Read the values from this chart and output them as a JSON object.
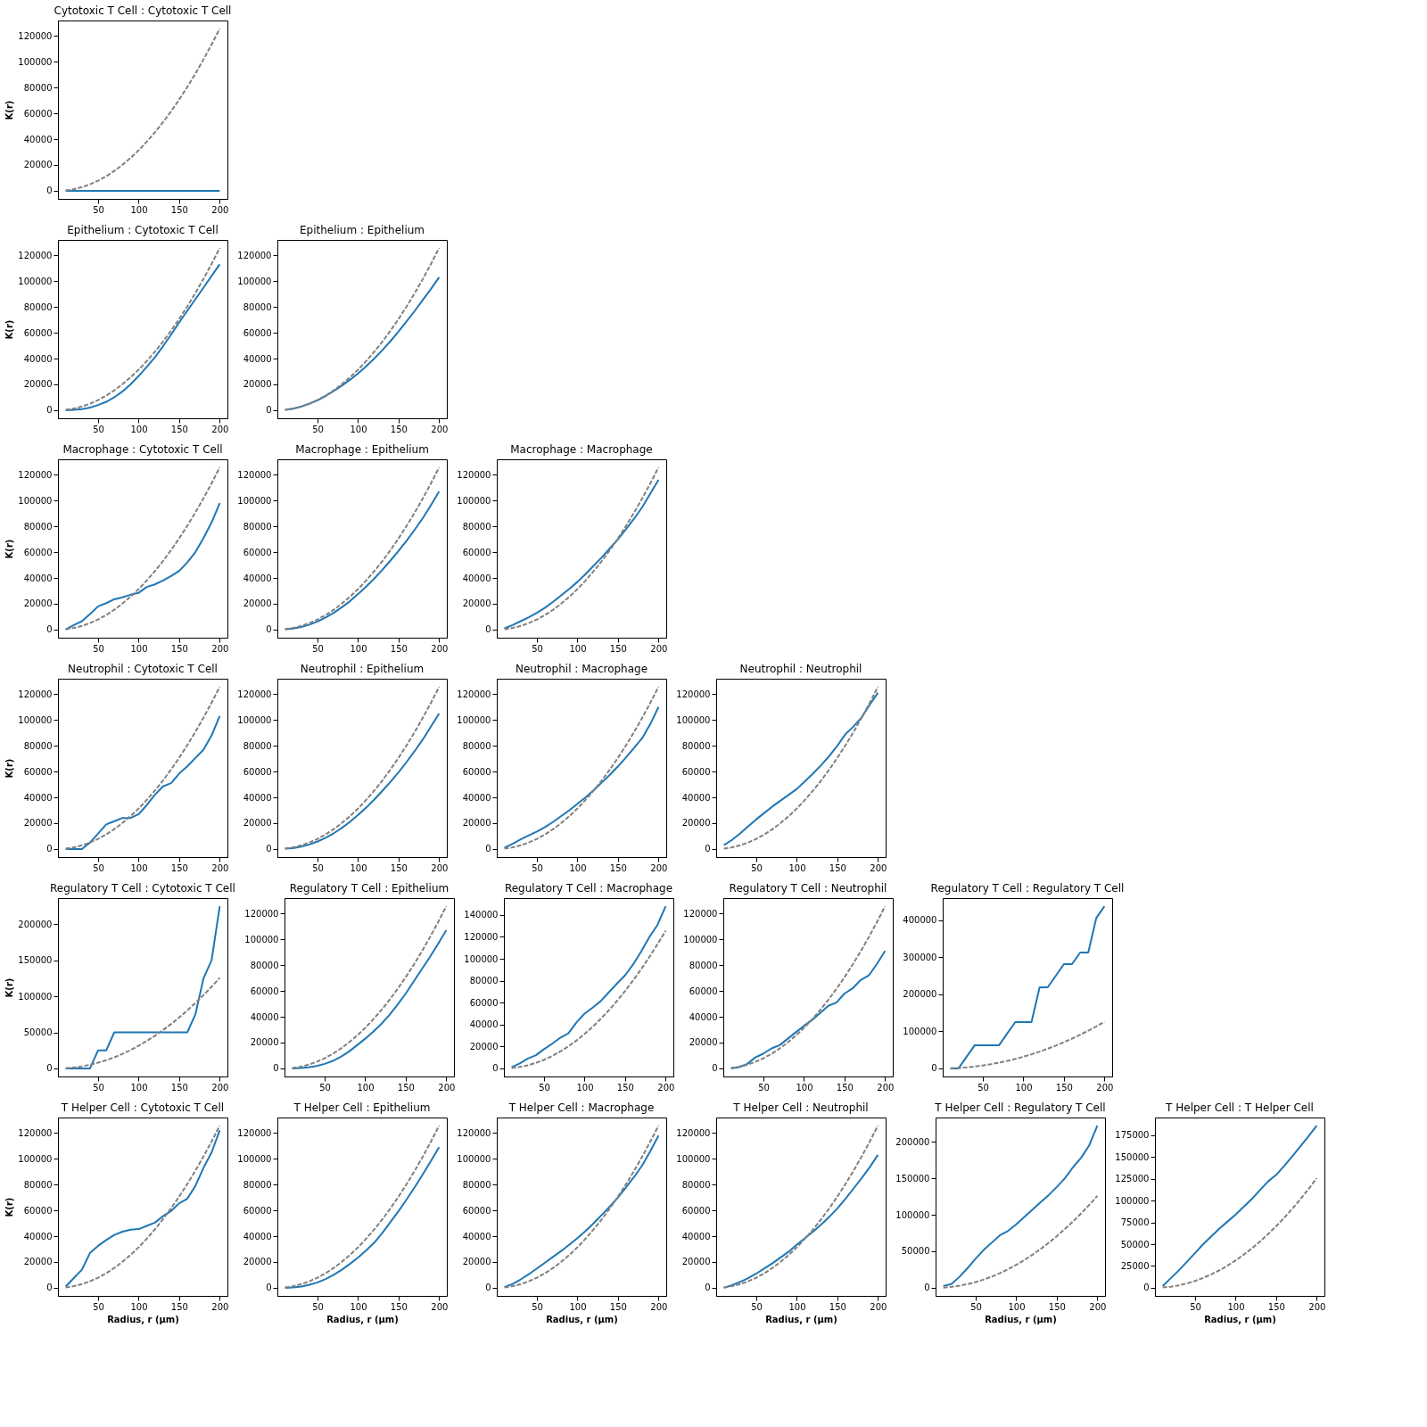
{
  "chart_data": [
    {
      "type": "line",
      "title": "Cytotoxic T Cell : Cytotoxic T Cell",
      "ylabel": "K(r)",
      "x": [
        10,
        20,
        30,
        40,
        50,
        60,
        70,
        80,
        90,
        100,
        110,
        120,
        130,
        140,
        150,
        160,
        170,
        180,
        190,
        200
      ],
      "xlim": [
        0.5,
        209.5
      ],
      "xticks": [
        50,
        100,
        150,
        200
      ],
      "ylim": [
        -6283,
        131947
      ],
      "yticks": [
        0,
        20000,
        40000,
        60000,
        80000,
        100000,
        120000
      ],
      "grid": false,
      "series": [
        {
          "color": "#1f77b4",
          "line_style": "solid",
          "values": [
            0,
            0,
            0,
            0,
            0,
            0,
            0,
            0,
            0,
            0,
            0,
            0,
            0,
            0,
            0,
            0,
            0,
            0,
            0,
            0
          ]
        },
        {
          "color": "#808080",
          "line_style": "dashed",
          "values": [
            314,
            1257,
            2827,
            5027,
            7854,
            11310,
            15394,
            20106,
            25447,
            31416,
            38013,
            45239,
            53093,
            61575,
            70686,
            80425,
            90792,
            101788,
            113411,
            125664
          ]
        }
      ]
    },
    {
      "type": "line",
      "title": "Epithelium : Cytotoxic T Cell",
      "ylabel": "K(r)",
      "x": [
        10,
        20,
        30,
        40,
        50,
        60,
        70,
        80,
        90,
        100,
        110,
        120,
        130,
        140,
        150,
        160,
        170,
        180,
        190,
        200
      ],
      "xlim": [
        0.5,
        209.5
      ],
      "xticks": [
        50,
        100,
        150,
        200
      ],
      "ylim": [
        -6283,
        131947
      ],
      "yticks": [
        0,
        20000,
        40000,
        60000,
        80000,
        100000,
        120000
      ],
      "grid": false,
      "series": [
        {
          "color": "#1f77b4",
          "line_style": "solid",
          "values": [
            0,
            300,
            800,
            2000,
            4000,
            6500,
            10000,
            14500,
            20000,
            26500,
            33500,
            41000,
            49500,
            58500,
            68000,
            77000,
            86000,
            95000,
            104000,
            113000
          ]
        },
        {
          "color": "#808080",
          "line_style": "dashed",
          "values": [
            314,
            1257,
            2827,
            5027,
            7854,
            11310,
            15394,
            20106,
            25447,
            31416,
            38013,
            45239,
            53093,
            61575,
            70686,
            80425,
            90792,
            101788,
            113411,
            125664
          ]
        }
      ]
    },
    {
      "type": "line",
      "title": "Epithelium : Epithelium",
      "x": [
        10,
        20,
        30,
        40,
        50,
        60,
        70,
        80,
        90,
        100,
        110,
        120,
        130,
        140,
        150,
        160,
        170,
        180,
        190,
        200
      ],
      "xlim": [
        0.5,
        209.5
      ],
      "xticks": [
        50,
        100,
        150,
        200
      ],
      "ylim": [
        -6283,
        131947
      ],
      "yticks": [
        0,
        20000,
        40000,
        60000,
        80000,
        100000,
        120000
      ],
      "grid": false,
      "series": [
        {
          "color": "#1f77b4",
          "line_style": "solid",
          "values": [
            300,
            1200,
            2800,
            5000,
            7700,
            11000,
            14800,
            19000,
            23500,
            28500,
            34000,
            40000,
            46500,
            53500,
            61000,
            69000,
            77000,
            85500,
            94000,
            103000
          ]
        },
        {
          "color": "#808080",
          "line_style": "dashed",
          "values": [
            314,
            1257,
            2827,
            5027,
            7854,
            11310,
            15394,
            20106,
            25447,
            31416,
            38013,
            45239,
            53093,
            61575,
            70686,
            80425,
            90792,
            101788,
            113411,
            125664
          ]
        }
      ]
    },
    {
      "type": "line",
      "title": "Macrophage : Cytotoxic T Cell",
      "ylabel": "K(r)",
      "x": [
        10,
        20,
        30,
        40,
        50,
        60,
        70,
        80,
        90,
        100,
        110,
        120,
        130,
        140,
        150,
        160,
        170,
        180,
        190,
        200
      ],
      "xlim": [
        0.5,
        209.5
      ],
      "xticks": [
        50,
        100,
        150,
        200
      ],
      "ylim": [
        -6283,
        131947
      ],
      "yticks": [
        0,
        20000,
        40000,
        60000,
        80000,
        100000,
        120000
      ],
      "grid": false,
      "series": [
        {
          "color": "#1f77b4",
          "line_style": "solid",
          "values": [
            0,
            3500,
            6500,
            12000,
            18000,
            20500,
            23500,
            25000,
            27000,
            28500,
            33000,
            35000,
            38000,
            41500,
            45500,
            52000,
            60000,
            71000,
            83000,
            98000
          ]
        },
        {
          "color": "#808080",
          "line_style": "dashed",
          "values": [
            314,
            1257,
            2827,
            5027,
            7854,
            11310,
            15394,
            20106,
            25447,
            31416,
            38013,
            45239,
            53093,
            61575,
            70686,
            80425,
            90792,
            101788,
            113411,
            125664
          ]
        }
      ]
    },
    {
      "type": "line",
      "title": "Macrophage : Epithelium",
      "x": [
        10,
        20,
        30,
        40,
        50,
        60,
        70,
        80,
        90,
        100,
        110,
        120,
        130,
        140,
        150,
        160,
        170,
        180,
        190,
        200
      ],
      "xlim": [
        0.5,
        209.5
      ],
      "xticks": [
        50,
        100,
        150,
        200
      ],
      "ylim": [
        -6283,
        131947
      ],
      "yticks": [
        0,
        20000,
        40000,
        60000,
        80000,
        100000,
        120000
      ],
      "grid": false,
      "series": [
        {
          "color": "#1f77b4",
          "line_style": "solid",
          "values": [
            200,
            800,
            2000,
            3800,
            6200,
            9300,
            13000,
            17300,
            22000,
            27500,
            33300,
            39500,
            46300,
            53500,
            61000,
            69000,
            77500,
            86500,
            96500,
            107000
          ]
        },
        {
          "color": "#808080",
          "line_style": "dashed",
          "values": [
            314,
            1257,
            2827,
            5027,
            7854,
            11310,
            15394,
            20106,
            25447,
            31416,
            38013,
            45239,
            53093,
            61575,
            70686,
            80425,
            90792,
            101788,
            113411,
            125664
          ]
        }
      ]
    },
    {
      "type": "line",
      "title": "Macrophage : Macrophage",
      "x": [
        10,
        20,
        30,
        40,
        50,
        60,
        70,
        80,
        90,
        100,
        110,
        120,
        130,
        140,
        150,
        160,
        170,
        180,
        190,
        200
      ],
      "xlim": [
        0.5,
        209.5
      ],
      "xticks": [
        50,
        100,
        150,
        200
      ],
      "ylim": [
        -6283,
        131947
      ],
      "yticks": [
        0,
        20000,
        40000,
        60000,
        80000,
        100000,
        120000
      ],
      "grid": false,
      "series": [
        {
          "color": "#1f77b4",
          "line_style": "solid",
          "values": [
            1000,
            3500,
            6500,
            9500,
            13000,
            17000,
            21500,
            26500,
            31500,
            37000,
            43000,
            49500,
            56000,
            63000,
            70000,
            78000,
            86000,
            95000,
            105500,
            116000
          ]
        },
        {
          "color": "#808080",
          "line_style": "dashed",
          "values": [
            314,
            1257,
            2827,
            5027,
            7854,
            11310,
            15394,
            20106,
            25447,
            31416,
            38013,
            45239,
            53093,
            61575,
            70686,
            80425,
            90792,
            101788,
            113411,
            125664
          ]
        }
      ]
    },
    {
      "type": "line",
      "title": "Neutrophil : Cytotoxic T Cell",
      "ylabel": "K(r)",
      "x": [
        10,
        20,
        30,
        40,
        50,
        60,
        70,
        80,
        90,
        100,
        110,
        120,
        130,
        140,
        150,
        160,
        170,
        180,
        190,
        200
      ],
      "xlim": [
        0.5,
        209.5
      ],
      "xticks": [
        50,
        100,
        150,
        200
      ],
      "ylim": [
        -6283,
        131947
      ],
      "yticks": [
        0,
        20000,
        40000,
        60000,
        80000,
        100000,
        120000
      ],
      "grid": false,
      "series": [
        {
          "color": "#1f77b4",
          "line_style": "solid",
          "values": [
            0,
            0,
            0,
            5000,
            12000,
            19000,
            21500,
            24000,
            24000,
            27000,
            34000,
            42000,
            48500,
            51000,
            58500,
            64000,
            70500,
            77000,
            88000,
            103000
          ]
        },
        {
          "color": "#808080",
          "line_style": "dashed",
          "values": [
            314,
            1257,
            2827,
            5027,
            7854,
            11310,
            15394,
            20106,
            25447,
            31416,
            38013,
            45239,
            53093,
            61575,
            70686,
            80425,
            90792,
            101788,
            113411,
            125664
          ]
        }
      ]
    },
    {
      "type": "line",
      "title": "Neutrophil : Epithelium",
      "x": [
        10,
        20,
        30,
        40,
        50,
        60,
        70,
        80,
        90,
        100,
        110,
        120,
        130,
        140,
        150,
        160,
        170,
        180,
        190,
        200
      ],
      "xlim": [
        0.5,
        209.5
      ],
      "xticks": [
        50,
        100,
        150,
        200
      ],
      "ylim": [
        -6283,
        131947
      ],
      "yticks": [
        0,
        20000,
        40000,
        60000,
        80000,
        100000,
        120000
      ],
      "grid": false,
      "series": [
        {
          "color": "#1f77b4",
          "line_style": "solid",
          "values": [
            200,
            700,
            1800,
            3500,
            5800,
            8700,
            12200,
            16300,
            21000,
            26300,
            32000,
            38300,
            45000,
            52000,
            59500,
            67500,
            76000,
            85000,
            95000,
            105000
          ]
        },
        {
          "color": "#808080",
          "line_style": "dashed",
          "values": [
            314,
            1257,
            2827,
            5027,
            7854,
            11310,
            15394,
            20106,
            25447,
            31416,
            38013,
            45239,
            53093,
            61575,
            70686,
            80425,
            90792,
            101788,
            113411,
            125664
          ]
        }
      ]
    },
    {
      "type": "line",
      "title": "Neutrophil : Macrophage",
      "x": [
        10,
        20,
        30,
        40,
        50,
        60,
        70,
        80,
        90,
        100,
        110,
        120,
        130,
        140,
        150,
        160,
        170,
        180,
        190,
        200
      ],
      "xlim": [
        0.5,
        209.5
      ],
      "xticks": [
        50,
        100,
        150,
        200
      ],
      "ylim": [
        -6283,
        131947
      ],
      "yticks": [
        0,
        20000,
        40000,
        60000,
        80000,
        100000,
        120000
      ],
      "grid": false,
      "series": [
        {
          "color": "#1f77b4",
          "line_style": "solid",
          "values": [
            1000,
            4000,
            7500,
            10500,
            13500,
            17000,
            21000,
            25500,
            30000,
            35000,
            40000,
            45500,
            51500,
            57500,
            64000,
            71000,
            78500,
            86000,
            97000,
            110000
          ]
        },
        {
          "color": "#808080",
          "line_style": "dashed",
          "values": [
            314,
            1257,
            2827,
            5027,
            7854,
            11310,
            15394,
            20106,
            25447,
            31416,
            38013,
            45239,
            53093,
            61575,
            70686,
            80425,
            90792,
            101788,
            113411,
            125664
          ]
        }
      ]
    },
    {
      "type": "line",
      "title": "Neutrophil : Neutrophil",
      "x": [
        10,
        20,
        30,
        40,
        50,
        60,
        70,
        80,
        90,
        100,
        110,
        120,
        130,
        140,
        150,
        160,
        170,
        180,
        190,
        200
      ],
      "xlim": [
        0.5,
        209.5
      ],
      "xticks": [
        50,
        100,
        150,
        200
      ],
      "ylim": [
        -6283,
        131947
      ],
      "yticks": [
        0,
        20000,
        40000,
        60000,
        80000,
        100000,
        120000
      ],
      "grid": false,
      "series": [
        {
          "color": "#1f77b4",
          "line_style": "solid",
          "values": [
            3000,
            7000,
            12000,
            17500,
            23000,
            28000,
            33000,
            37500,
            42000,
            46500,
            52500,
            58500,
            65000,
            72000,
            80000,
            89000,
            95000,
            102000,
            112000,
            121000
          ]
        },
        {
          "color": "#808080",
          "line_style": "dashed",
          "values": [
            314,
            1257,
            2827,
            5027,
            7854,
            11310,
            15394,
            20106,
            25447,
            31416,
            38013,
            45239,
            53093,
            61575,
            70686,
            80425,
            90792,
            101788,
            113411,
            125664
          ]
        }
      ]
    },
    {
      "type": "line",
      "title": "Regulatory T Cell : Cytotoxic T Cell",
      "ylabel": "K(r)",
      "x": [
        10,
        20,
        30,
        40,
        50,
        60,
        70,
        80,
        90,
        100,
        110,
        120,
        130,
        140,
        150,
        160,
        170,
        180,
        190,
        200
      ],
      "xlim": [
        0.5,
        209.5
      ],
      "xticks": [
        50,
        100,
        150,
        200
      ],
      "ylim": [
        -11250,
        236250
      ],
      "yticks": [
        0,
        50000,
        100000,
        150000,
        200000
      ],
      "grid": false,
      "series": [
        {
          "color": "#1f77b4",
          "line_style": "solid",
          "values": [
            0,
            0,
            0,
            0,
            25000,
            25000,
            50000,
            50000,
            50000,
            50000,
            50000,
            50000,
            50000,
            50000,
            50000,
            50000,
            75000,
            125000,
            150000,
            225000
          ]
        },
        {
          "color": "#808080",
          "line_style": "dashed",
          "values": [
            314,
            1257,
            2827,
            5027,
            7854,
            11310,
            15394,
            20106,
            25447,
            31416,
            38013,
            45239,
            53093,
            61575,
            70686,
            80425,
            90792,
            101788,
            113411,
            125664
          ]
        }
      ]
    },
    {
      "type": "line",
      "title": "Regulatory T Cell : Epithelium",
      "x": [
        10,
        20,
        30,
        40,
        50,
        60,
        70,
        80,
        90,
        100,
        110,
        120,
        130,
        140,
        150,
        160,
        170,
        180,
        190,
        200
      ],
      "xlim": [
        0.5,
        209.5
      ],
      "xticks": [
        50,
        100,
        150,
        200
      ],
      "ylim": [
        -6283,
        131947
      ],
      "yticks": [
        0,
        20000,
        40000,
        60000,
        80000,
        100000,
        120000
      ],
      "grid": false,
      "series": [
        {
          "color": "#1f77b4",
          "line_style": "solid",
          "values": [
            0,
            300,
            800,
            1800,
            3500,
            5800,
            9000,
            13000,
            18000,
            23000,
            28500,
            34500,
            41500,
            49500,
            58000,
            67500,
            77000,
            86500,
            96500,
            107000
          ]
        },
        {
          "color": "#808080",
          "line_style": "dashed",
          "values": [
            314,
            1257,
            2827,
            5027,
            7854,
            11310,
            15394,
            20106,
            25447,
            31416,
            38013,
            45239,
            53093,
            61575,
            70686,
            80425,
            90792,
            101788,
            113411,
            125664
          ]
        }
      ]
    },
    {
      "type": "line",
      "title": "Regulatory T Cell : Macrophage",
      "x": [
        10,
        20,
        30,
        40,
        50,
        60,
        70,
        80,
        90,
        100,
        110,
        120,
        130,
        140,
        150,
        160,
        170,
        180,
        190,
        200
      ],
      "xlim": [
        0.5,
        209.5
      ],
      "xticks": [
        50,
        100,
        150,
        200
      ],
      "ylim": [
        -7400,
        155400
      ],
      "yticks": [
        0,
        20000,
        40000,
        60000,
        80000,
        100000,
        120000,
        140000
      ],
      "grid": false,
      "series": [
        {
          "color": "#1f77b4",
          "line_style": "solid",
          "values": [
            1000,
            4500,
            9000,
            12000,
            17500,
            22500,
            28000,
            32000,
            42000,
            50000,
            55500,
            61500,
            69500,
            77500,
            85000,
            95000,
            107000,
            120000,
            131000,
            148000
          ]
        },
        {
          "color": "#808080",
          "line_style": "dashed",
          "values": [
            314,
            1257,
            2827,
            5027,
            7854,
            11310,
            15394,
            20106,
            25447,
            31416,
            38013,
            45239,
            53093,
            61575,
            70686,
            80425,
            90792,
            101788,
            113411,
            125664
          ]
        }
      ]
    },
    {
      "type": "line",
      "title": "Regulatory T Cell : Neutrophil",
      "x": [
        10,
        20,
        30,
        40,
        50,
        60,
        70,
        80,
        90,
        100,
        110,
        120,
        130,
        140,
        150,
        160,
        170,
        180,
        190,
        200
      ],
      "xlim": [
        0.5,
        209.5
      ],
      "xticks": [
        50,
        100,
        150,
        200
      ],
      "ylim": [
        -6283,
        131947
      ],
      "yticks": [
        0,
        20000,
        40000,
        60000,
        80000,
        100000,
        120000
      ],
      "grid": false,
      "series": [
        {
          "color": "#1f77b4",
          "line_style": "solid",
          "values": [
            0,
            1000,
            3500,
            8500,
            11500,
            15500,
            18000,
            23000,
            28000,
            33000,
            37500,
            43000,
            48500,
            51000,
            58000,
            62000,
            68500,
            72000,
            81000,
            91000
          ]
        },
        {
          "color": "#808080",
          "line_style": "dashed",
          "values": [
            314,
            1257,
            2827,
            5027,
            7854,
            11310,
            15394,
            20106,
            25447,
            31416,
            38013,
            45239,
            53093,
            61575,
            70686,
            80425,
            90792,
            101788,
            113411,
            125664
          ]
        }
      ]
    },
    {
      "type": "line",
      "title": "Regulatory T Cell : Regulatory T Cell",
      "x": [
        10,
        20,
        30,
        40,
        50,
        60,
        70,
        80,
        90,
        100,
        110,
        120,
        130,
        140,
        150,
        160,
        170,
        180,
        190,
        200
      ],
      "xlim": [
        0.5,
        209.5
      ],
      "xticks": [
        50,
        100,
        150,
        200
      ],
      "ylim": [
        -21875,
        459375
      ],
      "yticks": [
        0,
        100000,
        200000,
        300000,
        400000
      ],
      "grid": false,
      "series": [
        {
          "color": "#1f77b4",
          "line_style": "solid",
          "values": [
            0,
            0,
            31250,
            62500,
            62500,
            62500,
            62500,
            93750,
            125000,
            125000,
            125000,
            218750,
            218750,
            250000,
            281250,
            281250,
            312500,
            312500,
            406250,
            437500
          ]
        },
        {
          "color": "#808080",
          "line_style": "dashed",
          "values": [
            314,
            1257,
            2827,
            5027,
            7854,
            11310,
            15394,
            20106,
            25447,
            31416,
            38013,
            45239,
            53093,
            61575,
            70686,
            80425,
            90792,
            101788,
            113411,
            125664
          ]
        }
      ]
    },
    {
      "type": "line",
      "title": "T Helper Cell : Cytotoxic T Cell",
      "ylabel": "K(r)",
      "xlabel": "Radius, r (μm)",
      "x": [
        10,
        20,
        30,
        40,
        50,
        60,
        70,
        80,
        90,
        100,
        110,
        120,
        130,
        140,
        150,
        160,
        170,
        180,
        190,
        200
      ],
      "xlim": [
        0.5,
        209.5
      ],
      "xticks": [
        50,
        100,
        150,
        200
      ],
      "ylim": [
        -6283,
        131947
      ],
      "yticks": [
        0,
        20000,
        40000,
        60000,
        80000,
        100000,
        120000
      ],
      "grid": false,
      "series": [
        {
          "color": "#1f77b4",
          "line_style": "solid",
          "values": [
            1000,
            7500,
            14000,
            27000,
            32500,
            37000,
            41000,
            43500,
            45000,
            45500,
            48000,
            50500,
            55500,
            59500,
            65500,
            69000,
            79000,
            93000,
            105000,
            122000
          ]
        },
        {
          "color": "#808080",
          "line_style": "dashed",
          "values": [
            314,
            1257,
            2827,
            5027,
            7854,
            11310,
            15394,
            20106,
            25447,
            31416,
            38013,
            45239,
            53093,
            61575,
            70686,
            80425,
            90792,
            101788,
            113411,
            125664
          ]
        }
      ]
    },
    {
      "type": "line",
      "title": "T Helper Cell : Epithelium",
      "xlabel": "Radius, r (μm)",
      "x": [
        10,
        20,
        30,
        40,
        50,
        60,
        70,
        80,
        90,
        100,
        110,
        120,
        130,
        140,
        150,
        160,
        170,
        180,
        190,
        200
      ],
      "xlim": [
        0.5,
        209.5
      ],
      "xticks": [
        50,
        100,
        150,
        200
      ],
      "ylim": [
        -6283,
        131947
      ],
      "yticks": [
        0,
        20000,
        40000,
        60000,
        80000,
        100000,
        120000
      ],
      "grid": false,
      "series": [
        {
          "color": "#1f77b4",
          "line_style": "solid",
          "values": [
            0,
            300,
            1000,
            2300,
            4200,
            6800,
            10000,
            14000,
            18500,
            23500,
            29000,
            35000,
            42500,
            51000,
            59500,
            68500,
            78000,
            88000,
            98500,
            109000
          ]
        },
        {
          "color": "#808080",
          "line_style": "dashed",
          "values": [
            314,
            1257,
            2827,
            5027,
            7854,
            11310,
            15394,
            20106,
            25447,
            31416,
            38013,
            45239,
            53093,
            61575,
            70686,
            80425,
            90792,
            101788,
            113411,
            125664
          ]
        }
      ]
    },
    {
      "type": "line",
      "title": "T Helper Cell : Macrophage",
      "xlabel": "Radius, r (μm)",
      "x": [
        10,
        20,
        30,
        40,
        50,
        60,
        70,
        80,
        90,
        100,
        110,
        120,
        130,
        140,
        150,
        160,
        170,
        180,
        190,
        200
      ],
      "xlim": [
        0.5,
        209.5
      ],
      "xticks": [
        50,
        100,
        150,
        200
      ],
      "ylim": [
        -6283,
        131947
      ],
      "yticks": [
        0,
        20000,
        40000,
        60000,
        80000,
        100000,
        120000
      ],
      "grid": false,
      "series": [
        {
          "color": "#1f77b4",
          "line_style": "solid",
          "values": [
            500,
            3000,
            6500,
            10500,
            15000,
            19500,
            24000,
            28500,
            33500,
            38500,
            44000,
            50000,
            56500,
            63000,
            70000,
            78000,
            86000,
            95000,
            106000,
            118000
          ]
        },
        {
          "color": "#808080",
          "line_style": "dashed",
          "values": [
            314,
            1257,
            2827,
            5027,
            7854,
            11310,
            15394,
            20106,
            25447,
            31416,
            38013,
            45239,
            53093,
            61575,
            70686,
            80425,
            90792,
            101788,
            113411,
            125664
          ]
        }
      ]
    },
    {
      "type": "line",
      "title": "T Helper Cell : Neutrophil",
      "xlabel": "Radius, r (μm)",
      "x": [
        10,
        20,
        30,
        40,
        50,
        60,
        70,
        80,
        90,
        100,
        110,
        120,
        130,
        140,
        150,
        160,
        170,
        180,
        190,
        200
      ],
      "xlim": [
        0.5,
        209.5
      ],
      "xticks": [
        50,
        100,
        150,
        200
      ],
      "ylim": [
        -6283,
        131947
      ],
      "yticks": [
        0,
        20000,
        40000,
        60000,
        80000,
        100000,
        120000
      ],
      "grid": false,
      "series": [
        {
          "color": "#1f77b4",
          "line_style": "solid",
          "values": [
            0,
            2000,
            4500,
            7500,
            11000,
            15000,
            19000,
            23500,
            28000,
            33500,
            38500,
            43500,
            49000,
            55000,
            61500,
            69000,
            77000,
            85000,
            93500,
            103000
          ]
        },
        {
          "color": "#808080",
          "line_style": "dashed",
          "values": [
            314,
            1257,
            2827,
            5027,
            7854,
            11310,
            15394,
            20106,
            25447,
            31416,
            38013,
            45239,
            53093,
            61575,
            70686,
            80425,
            90792,
            101788,
            113411,
            125664
          ]
        }
      ]
    },
    {
      "type": "line",
      "title": "T Helper Cell : Regulatory T Cell",
      "xlabel": "Radius, r (μm)",
      "x": [
        10,
        20,
        30,
        40,
        50,
        60,
        70,
        80,
        90,
        100,
        110,
        120,
        130,
        140,
        150,
        160,
        170,
        180,
        190,
        200
      ],
      "xlim": [
        0.5,
        209.5
      ],
      "xticks": [
        50,
        100,
        150,
        200
      ],
      "ylim": [
        -11100,
        233100
      ],
      "yticks": [
        0,
        50000,
        100000,
        150000,
        200000
      ],
      "grid": false,
      "series": [
        {
          "color": "#1f77b4",
          "line_style": "solid",
          "values": [
            2500,
            5000,
            15000,
            27000,
            40000,
            52000,
            62000,
            72000,
            78000,
            87000,
            97000,
            107000,
            117000,
            127000,
            138000,
            150000,
            165000,
            178000,
            195000,
            222000
          ]
        },
        {
          "color": "#808080",
          "line_style": "dashed",
          "values": [
            314,
            1257,
            2827,
            5027,
            7854,
            11310,
            15394,
            20106,
            25447,
            31416,
            38013,
            45239,
            53093,
            61575,
            70686,
            80425,
            90792,
            101788,
            113411,
            125664
          ]
        }
      ]
    },
    {
      "type": "line",
      "title": "T Helper Cell : T Helper Cell",
      "xlabel": "Radius, r (μm)",
      "x": [
        10,
        20,
        30,
        40,
        50,
        60,
        70,
        80,
        90,
        100,
        110,
        120,
        130,
        140,
        150,
        160,
        170,
        180,
        190,
        200
      ],
      "xlim": [
        0.5,
        209.5
      ],
      "xticks": [
        50,
        100,
        150,
        200
      ],
      "ylim": [
        -9300,
        195300
      ],
      "yticks": [
        0,
        25000,
        50000,
        75000,
        100000,
        125000,
        150000,
        175000
      ],
      "grid": false,
      "series": [
        {
          "color": "#1f77b4",
          "line_style": "solid",
          "values": [
            2000,
            11000,
            20000,
            30000,
            40000,
            50000,
            59000,
            68000,
            76000,
            84000,
            93000,
            102000,
            112000,
            122000,
            129500,
            140000,
            151000,
            162500,
            174000,
            186000
          ]
        },
        {
          "color": "#808080",
          "line_style": "dashed",
          "values": [
            314,
            1257,
            2827,
            5027,
            7854,
            11310,
            15394,
            20106,
            25447,
            31416,
            38013,
            45239,
            53093,
            61575,
            70686,
            80425,
            90792,
            101788,
            113411,
            125664
          ]
        }
      ]
    }
  ]
}
